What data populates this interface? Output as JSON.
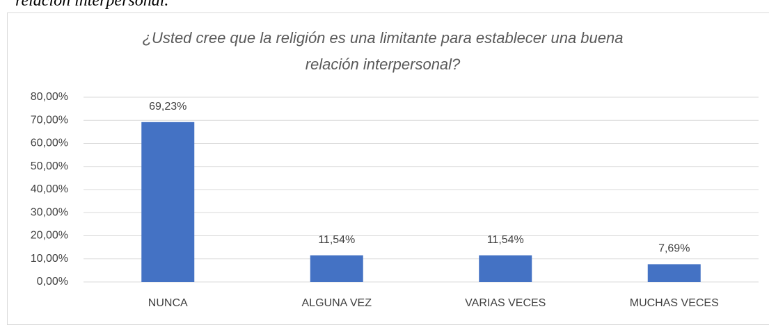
{
  "caption": "relación interpersonal.",
  "chart_data": {
    "type": "bar",
    "title": "¿Usted cree que la religión es una limitante para establecer una buena relación interpersonal?",
    "categories": [
      "NUNCA",
      "ALGUNA VEZ",
      "VARIAS VECES",
      "MUCHAS VECES"
    ],
    "values": [
      69.23,
      11.54,
      11.54,
      7.69
    ],
    "value_labels": [
      "69,23%",
      "11,54%",
      "11,54%",
      "7,69%"
    ],
    "color": "#4472c4",
    "ylim": [
      0,
      80
    ],
    "yticks": [
      {
        "value": 0,
        "label": "0,00%"
      },
      {
        "value": 10,
        "label": "10,00%"
      },
      {
        "value": 20,
        "label": "20,00%"
      },
      {
        "value": 30,
        "label": "30,00%"
      },
      {
        "value": 40,
        "label": "40,00%"
      },
      {
        "value": 50,
        "label": "50,00%"
      },
      {
        "value": 60,
        "label": "60,00%"
      },
      {
        "value": 70,
        "label": "70,00%"
      },
      {
        "value": 80,
        "label": "80,00%"
      }
    ],
    "grid": true
  }
}
